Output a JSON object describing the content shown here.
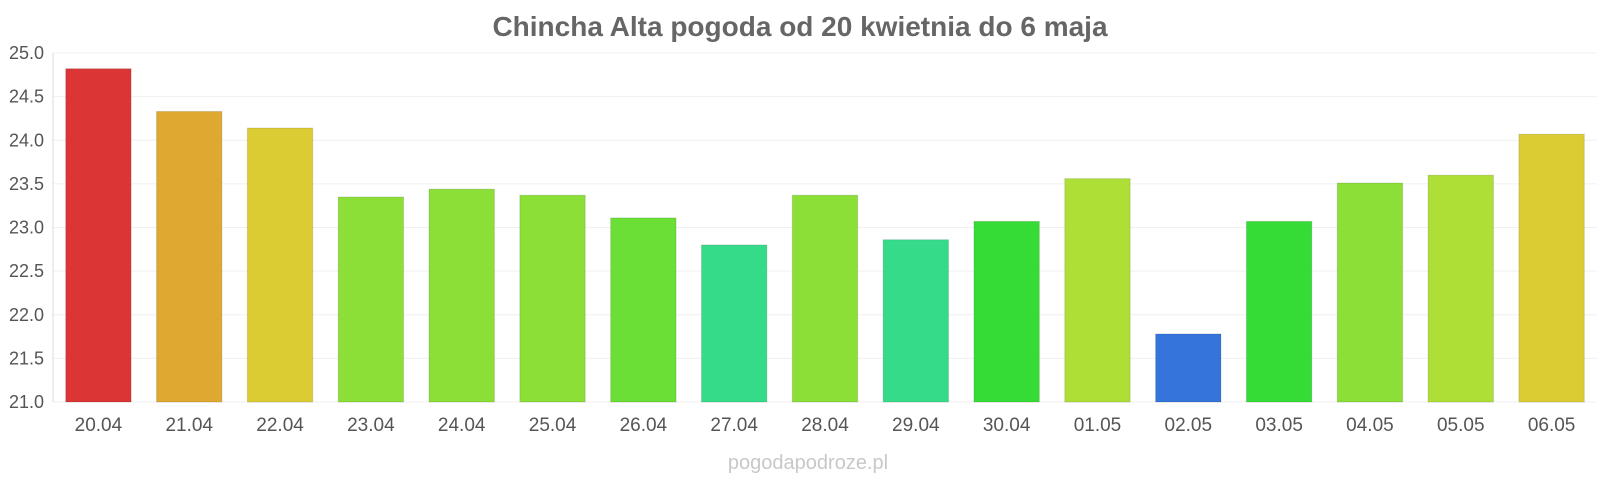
{
  "chart_data": {
    "type": "bar",
    "title": "Chincha Alta pogoda od 20 kwietnia do 6 maja",
    "xlabel": "",
    "ylabel": "",
    "ylim": [
      21.0,
      25.0
    ],
    "yticks": [
      "25.0",
      "24.5",
      "24.0",
      "23.5",
      "23.0",
      "22.5",
      "22.0",
      "21.5",
      "21.0"
    ],
    "grid": true,
    "categories": [
      "20.04",
      "21.04",
      "22.04",
      "23.04",
      "24.04",
      "25.04",
      "26.04",
      "27.04",
      "28.04",
      "29.04",
      "30.04",
      "01.05",
      "02.05",
      "03.05",
      "04.05",
      "05.05",
      "06.05"
    ],
    "values": [
      24.82,
      24.33,
      24.14,
      23.35,
      23.44,
      23.37,
      23.11,
      22.8,
      23.37,
      22.86,
      23.07,
      23.56,
      21.78,
      23.07,
      23.51,
      23.6,
      24.07
    ],
    "colors": [
      "#dc3535",
      "#dfa931",
      "#dccc33",
      "#8cdf37",
      "#8cdf37",
      "#8cdf37",
      "#6bdf36",
      "#36db8a",
      "#8cdf37",
      "#36db8a",
      "#36dc36",
      "#addf36",
      "#3474db",
      "#36dc36",
      "#8cdf37",
      "#addf36",
      "#dccc33"
    ]
  },
  "watermark": "pogodapodroze.pl"
}
